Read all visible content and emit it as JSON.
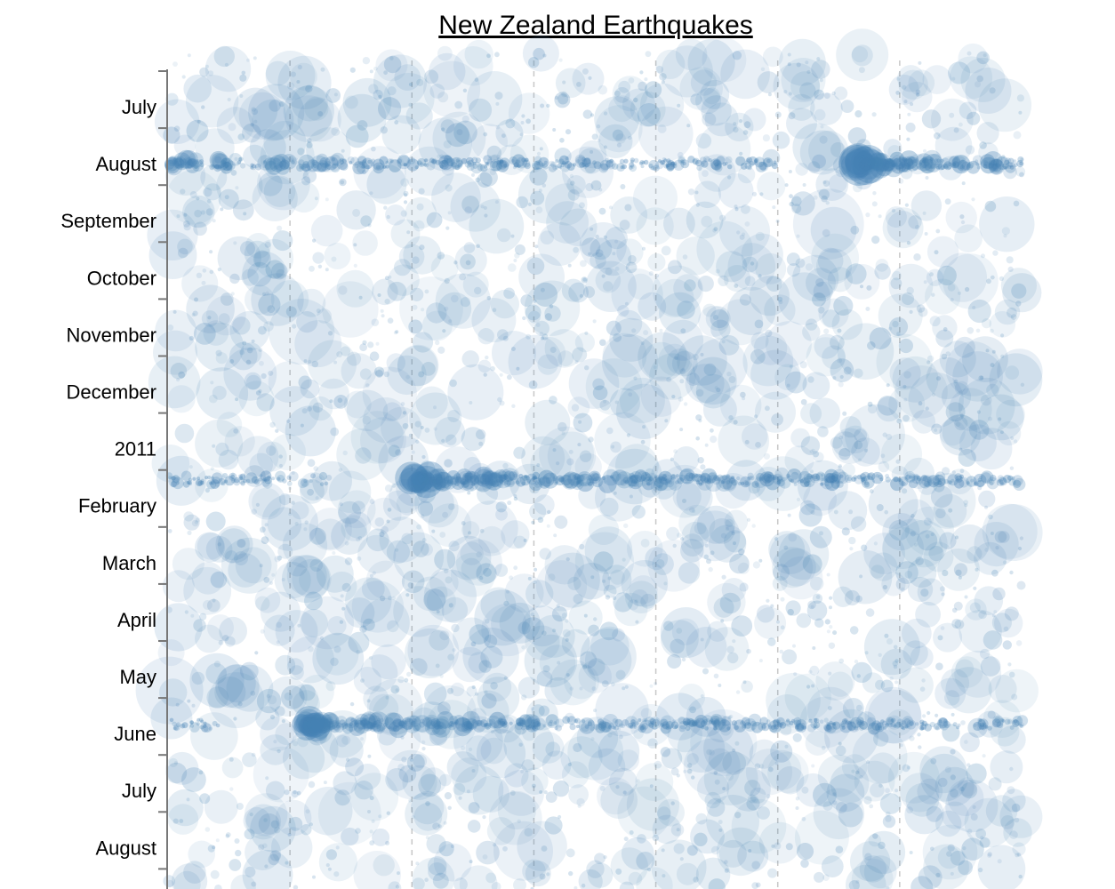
{
  "chart_data": {
    "type": "scatter",
    "title": "New Zealand Earthquakes",
    "y_tick_labels": [
      "July",
      "August",
      "September",
      "October",
      "November",
      "December",
      "2011",
      "February",
      "March",
      "April",
      "May",
      "June",
      "July",
      "August"
    ],
    "vertical_gridlines": 7,
    "marker_color": "#4682b4",
    "background_color": "#ffffff",
    "aftershock_sequences": [
      {
        "month_index": 1.55,
        "column_fraction": 0.81,
        "size": 24,
        "direction": 1
      },
      {
        "month_index": 7.12,
        "column_fraction": 0.29,
        "size": 18,
        "direction": 1
      },
      {
        "month_index": 11.42,
        "column_fraction": 0.16,
        "size": 16,
        "direction": 1
      }
    ]
  }
}
